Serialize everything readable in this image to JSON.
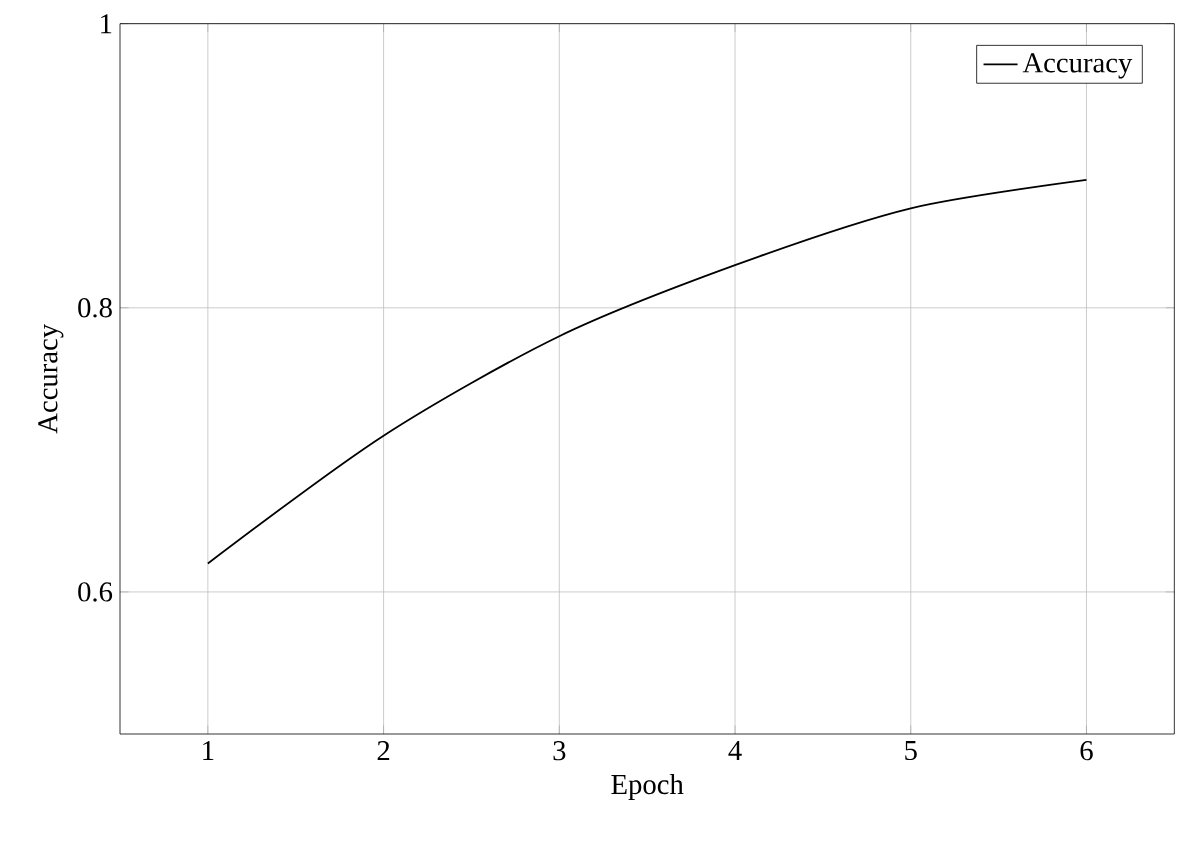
{
  "chart_data": {
    "type": "line",
    "xlabel": "Epoch",
    "ylabel": "Accuracy",
    "x": [
      1,
      2,
      3,
      4,
      5,
      6
    ],
    "series": [
      {
        "name": "Accuracy",
        "color": "#000000",
        "values": [
          0.62,
          0.71,
          0.78,
          0.83,
          0.87,
          0.89
        ]
      }
    ],
    "xlim": [
      0.5,
      6.5
    ],
    "ylim": [
      0.5,
      1
    ],
    "xticks": [
      1,
      2,
      3,
      4,
      5,
      6
    ],
    "yticks": [
      0.6,
      0.8,
      1
    ],
    "grid": true,
    "legend": "top right",
    "marker": "none",
    "line_style": "solid"
  }
}
